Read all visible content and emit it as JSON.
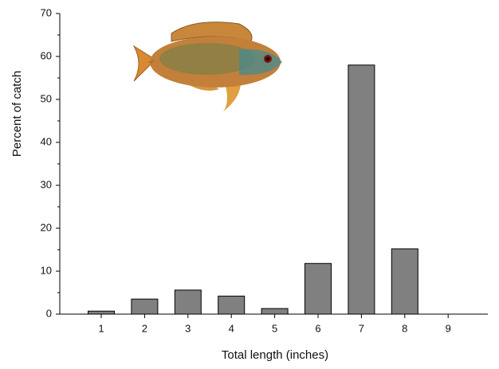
{
  "chart_data": {
    "type": "bar",
    "x_label": "Total length (inches)",
    "y_label": "Percent of catch",
    "categories": [
      "1",
      "2",
      "3",
      "4",
      "5",
      "6",
      "7",
      "8",
      "9"
    ],
    "values": [
      0.7,
      3.5,
      5.6,
      4.2,
      1.3,
      11.8,
      58,
      15.2,
      0
    ],
    "color": "#808080",
    "ylim": [
      0,
      70
    ],
    "yticks": [
      0,
      10,
      20,
      30,
      40,
      50,
      60,
      70
    ],
    "grid": false
  }
}
